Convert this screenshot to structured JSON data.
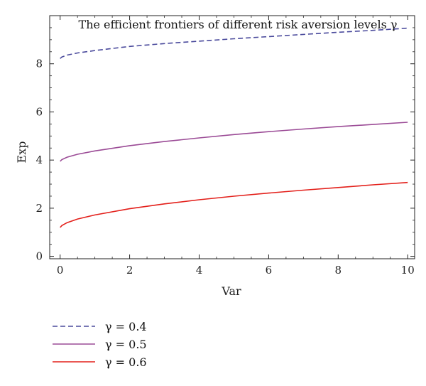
{
  "chart_data": {
    "type": "line",
    "title": "The efficient frontiers of different risk aversion levels γ",
    "xlabel": "Var",
    "ylabel": "Exp",
    "xlim": [
      -0.3,
      10.2
    ],
    "ylim": [
      -0.1,
      10
    ],
    "xticks": [
      0,
      2,
      4,
      6,
      8,
      10
    ],
    "yticks": [
      0,
      2,
      4,
      6,
      8
    ],
    "grid": false,
    "legend_position": "bottom-left",
    "series": [
      {
        "name": "γ = 0.4",
        "color": "#4a4a9c",
        "dash": "dashed",
        "x": [
          0,
          0.05,
          0.2,
          0.5,
          1,
          2,
          3,
          4,
          5,
          6,
          7,
          8,
          9,
          10
        ],
        "y": [
          8.22,
          8.28,
          8.36,
          8.45,
          8.55,
          8.72,
          8.84,
          8.94,
          9.04,
          9.13,
          9.22,
          9.31,
          9.39,
          9.48
        ]
      },
      {
        "name": "γ = 0.5",
        "color": "#9b4b96",
        "dash": "solid",
        "x": [
          0,
          0.05,
          0.2,
          0.5,
          1,
          2,
          3,
          4,
          5,
          6,
          7,
          8,
          9,
          10
        ],
        "y": [
          3.95,
          4.02,
          4.12,
          4.24,
          4.38,
          4.6,
          4.77,
          4.92,
          5.06,
          5.18,
          5.29,
          5.39,
          5.48,
          5.57
        ]
      },
      {
        "name": "γ = 0.6",
        "color": "#e3201b",
        "dash": "solid",
        "x": [
          0,
          0.05,
          0.2,
          0.5,
          1,
          2,
          3,
          4,
          5,
          6,
          7,
          8,
          9,
          10
        ],
        "y": [
          1.2,
          1.28,
          1.4,
          1.55,
          1.72,
          1.98,
          2.18,
          2.35,
          2.5,
          2.63,
          2.75,
          2.86,
          2.97,
          3.07
        ]
      }
    ]
  }
}
